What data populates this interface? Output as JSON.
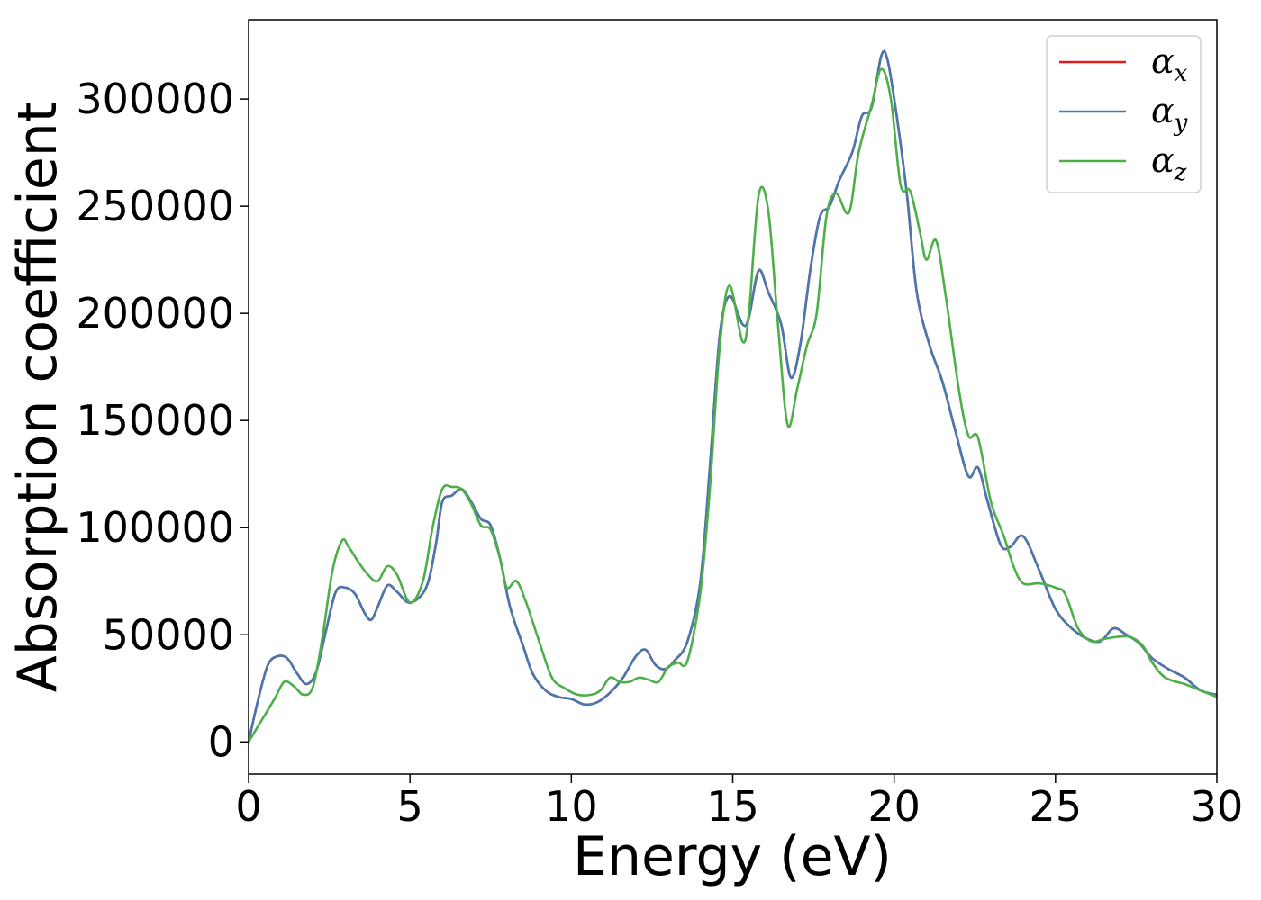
{
  "chart_data": {
    "type": "line",
    "title": "",
    "xlabel": "Energy (eV)",
    "ylabel": "Absorption coefficient",
    "xlim": [
      0,
      30
    ],
    "ylim": [
      -15000,
      337000
    ],
    "xticks": [
      0,
      5,
      10,
      15,
      20,
      25,
      30
    ],
    "yticks": [
      0,
      50000,
      100000,
      150000,
      200000,
      250000,
      300000
    ],
    "grid": false,
    "legend_position": "top-right",
    "series": [
      {
        "name": "α",
        "subscript": "x",
        "color": "#e41a1c",
        "points": [
          [
            0,
            0
          ],
          [
            0.3,
            20000
          ],
          [
            0.6,
            36000
          ],
          [
            0.9,
            40000
          ],
          [
            1.2,
            39000
          ],
          [
            1.5,
            32000
          ],
          [
            1.8,
            27000
          ],
          [
            2.1,
            33000
          ],
          [
            2.4,
            52000
          ],
          [
            2.7,
            70000
          ],
          [
            3.0,
            72000
          ],
          [
            3.3,
            69000
          ],
          [
            3.6,
            60000
          ],
          [
            3.8,
            57000
          ],
          [
            4.0,
            63000
          ],
          [
            4.3,
            73000
          ],
          [
            4.6,
            70000
          ],
          [
            5.0,
            65000
          ],
          [
            5.5,
            72000
          ],
          [
            5.8,
            92000
          ],
          [
            6.0,
            112000
          ],
          [
            6.3,
            115000
          ],
          [
            6.6,
            118000
          ],
          [
            6.9,
            112000
          ],
          [
            7.2,
            104000
          ],
          [
            7.5,
            101000
          ],
          [
            7.8,
            85000
          ],
          [
            8.1,
            63000
          ],
          [
            8.5,
            45000
          ],
          [
            8.8,
            32000
          ],
          [
            9.2,
            24000
          ],
          [
            9.6,
            21000
          ],
          [
            10.0,
            20000
          ],
          [
            10.4,
            17500
          ],
          [
            10.8,
            18500
          ],
          [
            11.2,
            23000
          ],
          [
            11.6,
            30000
          ],
          [
            12.0,
            40000
          ],
          [
            12.3,
            43000
          ],
          [
            12.6,
            36000
          ],
          [
            12.9,
            34000
          ],
          [
            13.2,
            38000
          ],
          [
            13.6,
            47000
          ],
          [
            14.0,
            75000
          ],
          [
            14.3,
            130000
          ],
          [
            14.6,
            190000
          ],
          [
            14.9,
            208000
          ],
          [
            15.3,
            195000
          ],
          [
            15.5,
            198000
          ],
          [
            15.8,
            220000
          ],
          [
            16.1,
            210000
          ],
          [
            16.5,
            195000
          ],
          [
            16.8,
            170000
          ],
          [
            17.1,
            186000
          ],
          [
            17.4,
            220000
          ],
          [
            17.7,
            245000
          ],
          [
            18.0,
            250000
          ],
          [
            18.3,
            262000
          ],
          [
            18.7,
            275000
          ],
          [
            19.0,
            292000
          ],
          [
            19.3,
            296000
          ],
          [
            19.6,
            320000
          ],
          [
            19.8,
            318000
          ],
          [
            20.1,
            290000
          ],
          [
            20.4,
            255000
          ],
          [
            20.7,
            210000
          ],
          [
            21.1,
            185000
          ],
          [
            21.5,
            168000
          ],
          [
            21.9,
            145000
          ],
          [
            22.3,
            124000
          ],
          [
            22.6,
            128000
          ],
          [
            22.9,
            112000
          ],
          [
            23.3,
            92000
          ],
          [
            23.6,
            91000
          ],
          [
            24.0,
            96000
          ],
          [
            24.5,
            80000
          ],
          [
            25.0,
            62000
          ],
          [
            25.5,
            53000
          ],
          [
            26.0,
            48000
          ],
          [
            26.4,
            47000
          ],
          [
            26.8,
            53000
          ],
          [
            27.2,
            50000
          ],
          [
            27.6,
            46000
          ],
          [
            28.0,
            39000
          ],
          [
            28.5,
            34000
          ],
          [
            29.0,
            30000
          ],
          [
            29.5,
            24000
          ],
          [
            30.0,
            22000
          ]
        ]
      },
      {
        "name": "α",
        "subscript": "y",
        "color": "#4878b0",
        "points": [
          [
            0,
            0
          ],
          [
            0.3,
            20000
          ],
          [
            0.6,
            36000
          ],
          [
            0.9,
            40000
          ],
          [
            1.2,
            39000
          ],
          [
            1.5,
            32000
          ],
          [
            1.8,
            27000
          ],
          [
            2.1,
            33000
          ],
          [
            2.4,
            52000
          ],
          [
            2.7,
            70000
          ],
          [
            3.0,
            72000
          ],
          [
            3.3,
            69000
          ],
          [
            3.6,
            60000
          ],
          [
            3.8,
            57000
          ],
          [
            4.0,
            63000
          ],
          [
            4.3,
            73000
          ],
          [
            4.6,
            70000
          ],
          [
            5.0,
            65000
          ],
          [
            5.5,
            72000
          ],
          [
            5.8,
            92000
          ],
          [
            6.0,
            112000
          ],
          [
            6.3,
            115000
          ],
          [
            6.6,
            118000
          ],
          [
            6.9,
            112000
          ],
          [
            7.2,
            104000
          ],
          [
            7.5,
            101000
          ],
          [
            7.8,
            85000
          ],
          [
            8.1,
            63000
          ],
          [
            8.5,
            45000
          ],
          [
            8.8,
            32000
          ],
          [
            9.2,
            24000
          ],
          [
            9.6,
            21000
          ],
          [
            10.0,
            20000
          ],
          [
            10.4,
            17500
          ],
          [
            10.8,
            18500
          ],
          [
            11.2,
            23000
          ],
          [
            11.6,
            30000
          ],
          [
            12.0,
            40000
          ],
          [
            12.3,
            43000
          ],
          [
            12.6,
            36000
          ],
          [
            12.9,
            34000
          ],
          [
            13.2,
            38000
          ],
          [
            13.6,
            47000
          ],
          [
            14.0,
            75000
          ],
          [
            14.3,
            130000
          ],
          [
            14.6,
            190000
          ],
          [
            14.9,
            208000
          ],
          [
            15.3,
            195000
          ],
          [
            15.5,
            198000
          ],
          [
            15.8,
            220000
          ],
          [
            16.1,
            210000
          ],
          [
            16.5,
            195000
          ],
          [
            16.8,
            170000
          ],
          [
            17.1,
            186000
          ],
          [
            17.4,
            220000
          ],
          [
            17.7,
            245000
          ],
          [
            18.0,
            250000
          ],
          [
            18.3,
            262000
          ],
          [
            18.7,
            275000
          ],
          [
            19.0,
            292000
          ],
          [
            19.3,
            296000
          ],
          [
            19.6,
            320000
          ],
          [
            19.8,
            318000
          ],
          [
            20.1,
            290000
          ],
          [
            20.4,
            255000
          ],
          [
            20.7,
            210000
          ],
          [
            21.1,
            185000
          ],
          [
            21.5,
            168000
          ],
          [
            21.9,
            145000
          ],
          [
            22.3,
            124000
          ],
          [
            22.6,
            128000
          ],
          [
            22.9,
            112000
          ],
          [
            23.3,
            92000
          ],
          [
            23.6,
            91000
          ],
          [
            24.0,
            96000
          ],
          [
            24.5,
            80000
          ],
          [
            25.0,
            62000
          ],
          [
            25.5,
            53000
          ],
          [
            26.0,
            48000
          ],
          [
            26.4,
            47000
          ],
          [
            26.8,
            53000
          ],
          [
            27.2,
            50000
          ],
          [
            27.6,
            46000
          ],
          [
            28.0,
            39000
          ],
          [
            28.5,
            34000
          ],
          [
            29.0,
            30000
          ],
          [
            29.5,
            24000
          ],
          [
            30.0,
            22000
          ]
        ]
      },
      {
        "name": "α",
        "subscript": "z",
        "color": "#4daf4a",
        "points": [
          [
            0,
            0
          ],
          [
            0.4,
            10000
          ],
          [
            0.8,
            20000
          ],
          [
            1.1,
            28000
          ],
          [
            1.4,
            26000
          ],
          [
            1.7,
            22000
          ],
          [
            2.0,
            26000
          ],
          [
            2.3,
            50000
          ],
          [
            2.6,
            80000
          ],
          [
            2.9,
            94000
          ],
          [
            3.1,
            91000
          ],
          [
            3.4,
            84000
          ],
          [
            3.7,
            78000
          ],
          [
            4.0,
            75000
          ],
          [
            4.3,
            82000
          ],
          [
            4.6,
            78000
          ],
          [
            5.0,
            65000
          ],
          [
            5.4,
            75000
          ],
          [
            5.7,
            100000
          ],
          [
            6.0,
            118000
          ],
          [
            6.3,
            119000
          ],
          [
            6.6,
            118000
          ],
          [
            6.9,
            111000
          ],
          [
            7.2,
            101000
          ],
          [
            7.5,
            99000
          ],
          [
            7.8,
            85000
          ],
          [
            8.0,
            72000
          ],
          [
            8.3,
            75000
          ],
          [
            8.6,
            65000
          ],
          [
            9.0,
            47000
          ],
          [
            9.4,
            30000
          ],
          [
            9.8,
            25000
          ],
          [
            10.2,
            22000
          ],
          [
            10.6,
            22000
          ],
          [
            10.9,
            24000
          ],
          [
            11.2,
            30000
          ],
          [
            11.5,
            28000
          ],
          [
            11.8,
            28000
          ],
          [
            12.1,
            30000
          ],
          [
            12.4,
            29000
          ],
          [
            12.7,
            28000
          ],
          [
            13.0,
            35000
          ],
          [
            13.3,
            37000
          ],
          [
            13.6,
            38000
          ],
          [
            14.0,
            70000
          ],
          [
            14.3,
            120000
          ],
          [
            14.6,
            185000
          ],
          [
            14.9,
            213000
          ],
          [
            15.3,
            187000
          ],
          [
            15.5,
            200000
          ],
          [
            15.8,
            255000
          ],
          [
            16.1,
            248000
          ],
          [
            16.4,
            195000
          ],
          [
            16.7,
            148000
          ],
          [
            17.0,
            165000
          ],
          [
            17.3,
            185000
          ],
          [
            17.6,
            200000
          ],
          [
            17.9,
            245000
          ],
          [
            18.2,
            256000
          ],
          [
            18.6,
            247000
          ],
          [
            18.9,
            275000
          ],
          [
            19.3,
            297000
          ],
          [
            19.6,
            314000
          ],
          [
            19.9,
            300000
          ],
          [
            20.2,
            260000
          ],
          [
            20.5,
            257000
          ],
          [
            20.8,
            238000
          ],
          [
            21.0,
            225000
          ],
          [
            21.3,
            234000
          ],
          [
            21.6,
            208000
          ],
          [
            22.0,
            165000
          ],
          [
            22.3,
            143000
          ],
          [
            22.6,
            142000
          ],
          [
            23.0,
            112000
          ],
          [
            23.4,
            96000
          ],
          [
            23.7,
            82000
          ],
          [
            24.0,
            74000
          ],
          [
            24.5,
            74000
          ],
          [
            25.0,
            72000
          ],
          [
            25.3,
            69000
          ],
          [
            25.7,
            53000
          ],
          [
            26.1,
            47000
          ],
          [
            26.5,
            48000
          ],
          [
            26.9,
            49000
          ],
          [
            27.3,
            49000
          ],
          [
            27.7,
            45000
          ],
          [
            28.0,
            37000
          ],
          [
            28.4,
            30000
          ],
          [
            29.0,
            27000
          ],
          [
            29.5,
            24000
          ],
          [
            30.0,
            21000
          ]
        ]
      }
    ]
  }
}
